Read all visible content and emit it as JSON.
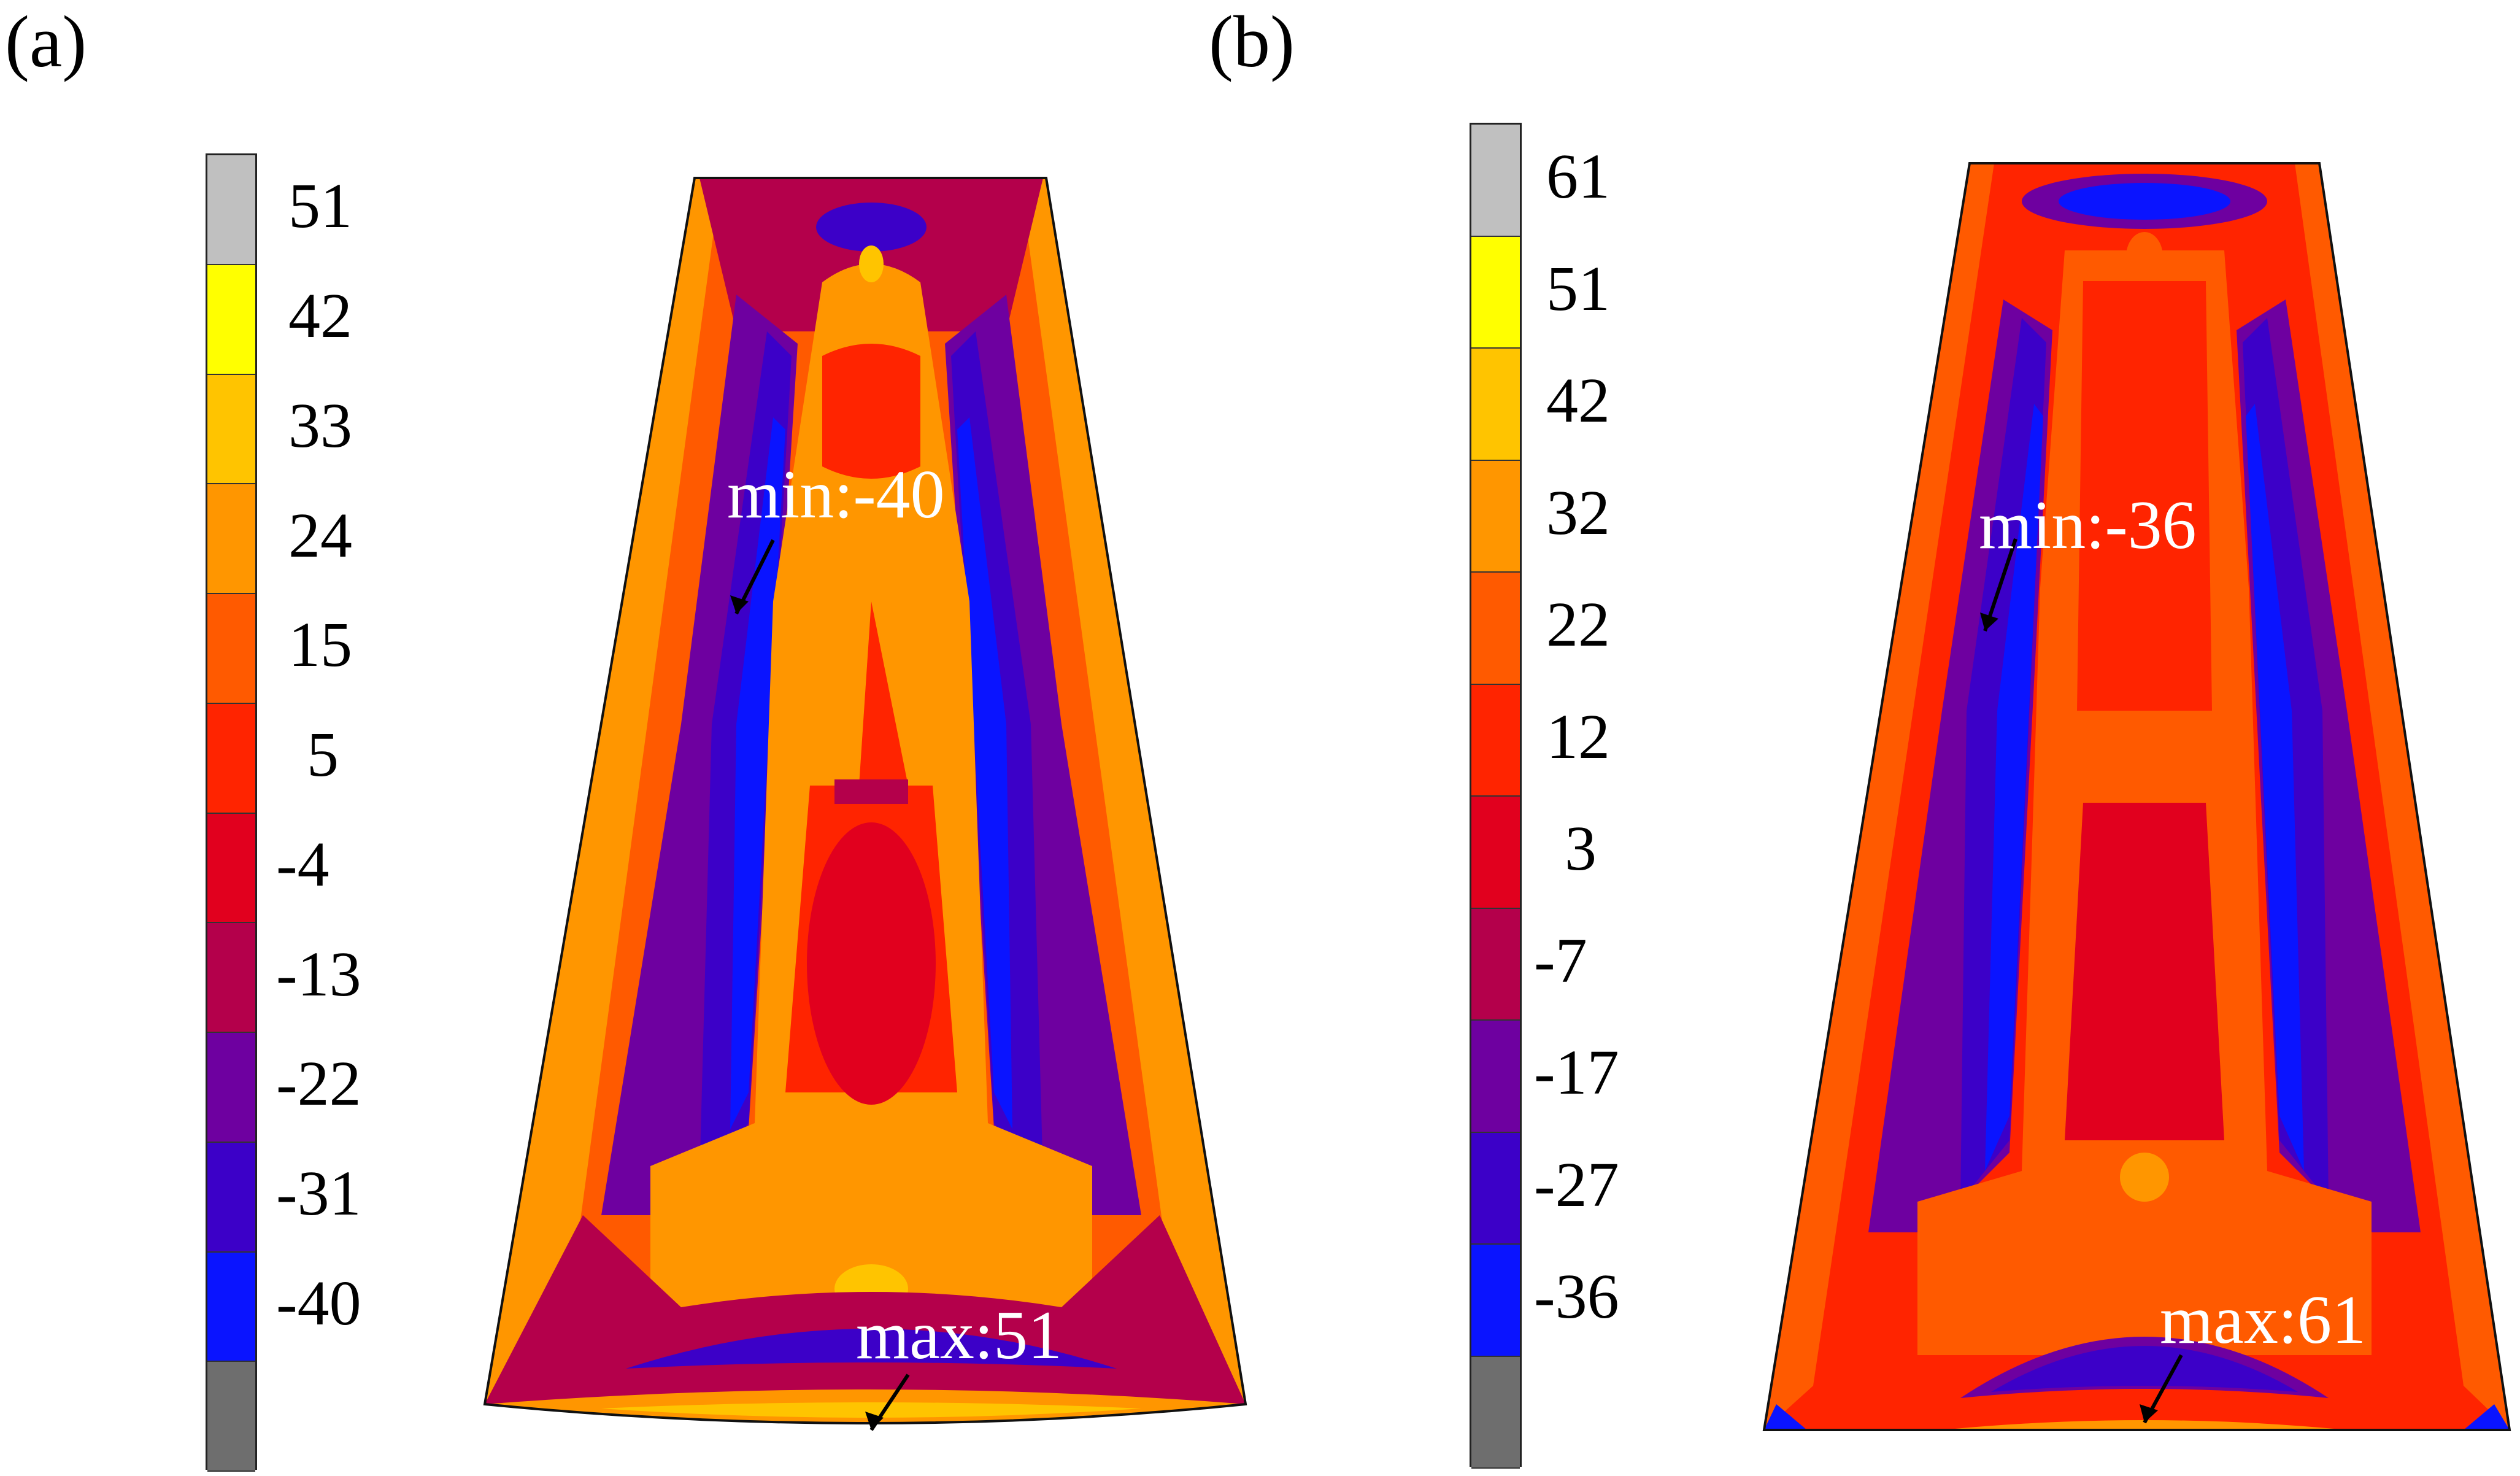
{
  "panels": [
    {
      "label": "(a)",
      "colorbar": [
        {
          "value": "51",
          "color": "#c0c0c0"
        },
        {
          "value": "42",
          "color": "#ffff00"
        },
        {
          "value": "33",
          "color": "#ffc400"
        },
        {
          "value": "24",
          "color": "#ff9600"
        },
        {
          "value": "15",
          "color": "#ff5a00"
        },
        {
          "value": "5",
          "color": "#ff2400"
        },
        {
          "value": "-4",
          "color": "#e1001e"
        },
        {
          "value": "-13",
          "color": "#b4004b"
        },
        {
          "value": "-22",
          "color": "#6e00a0"
        },
        {
          "value": "-31",
          "color": "#3c00c8"
        },
        {
          "value": "-40",
          "color": "#0a14ff"
        },
        {
          "value": "",
          "color": "#6e6e6e"
        }
      ],
      "min_label": "min:-40",
      "max_label": "max:51"
    },
    {
      "label": "(b)",
      "colorbar": [
        {
          "value": "61",
          "color": "#c0c0c0"
        },
        {
          "value": "51",
          "color": "#ffff00"
        },
        {
          "value": "42",
          "color": "#ffc400"
        },
        {
          "value": "32",
          "color": "#ff9600"
        },
        {
          "value": "22",
          "color": "#ff5a00"
        },
        {
          "value": "12",
          "color": "#ff2400"
        },
        {
          "value": "3",
          "color": "#e1001e"
        },
        {
          "value": "-7",
          "color": "#b4004b"
        },
        {
          "value": "-17",
          "color": "#6e00a0"
        },
        {
          "value": "-27",
          "color": "#3c00c8"
        },
        {
          "value": "-36",
          "color": "#0a14ff"
        },
        {
          "value": "",
          "color": "#6e6e6e"
        }
      ],
      "min_label": "min:-36",
      "max_label": "max:61"
    }
  ]
}
